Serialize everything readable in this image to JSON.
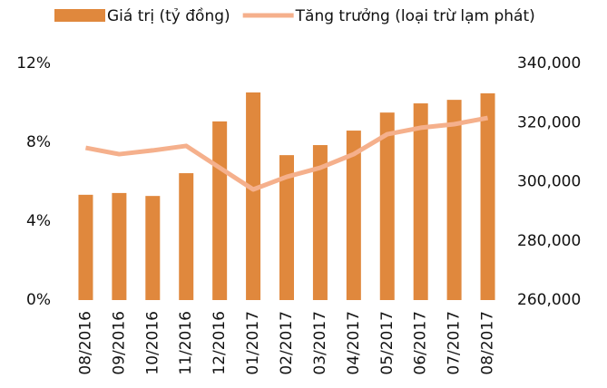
{
  "chart_data": {
    "type": "bar_line",
    "categories": [
      "08/2016",
      "09/2016",
      "10/2016",
      "11/2016",
      "12/2016",
      "01/2017",
      "02/2017",
      "03/2017",
      "04/2017",
      "05/2017",
      "06/2017",
      "07/2017",
      "08/2017"
    ],
    "series": [
      {
        "name": "Giá trị (tỷ đồng)",
        "type": "bar",
        "color": "#e0883d",
        "axis": "y2",
        "values": [
          295600,
          296200,
          295200,
          302900,
          320400,
          330200,
          309000,
          312400,
          317300,
          323400,
          326500,
          327700,
          329900
        ]
      },
      {
        "name": "Tăng trưởng (loại trừ lạm phát)",
        "type": "line",
        "color": "#f5b08c",
        "axis": "y",
        "values": [
          7.72,
          7.4,
          7.59,
          7.82,
          6.71,
          5.61,
          6.25,
          6.71,
          7.4,
          8.41,
          8.74,
          8.92,
          9.24
        ]
      }
    ],
    "ylim": [
      0,
      12
    ],
    "yticks": [
      {
        "value": 0,
        "label": "0%"
      },
      {
        "value": 4,
        "label": "4%"
      },
      {
        "value": 8,
        "label": "8%"
      },
      {
        "value": 12,
        "label": "12%"
      }
    ],
    "y2lim": [
      260000,
      340000
    ],
    "y2ticks": [
      {
        "value": 260000,
        "label": "260,000"
      },
      {
        "value": 280000,
        "label": "280,000"
      },
      {
        "value": 300000,
        "label": "300,000"
      },
      {
        "value": 320000,
        "label": "320,000"
      },
      {
        "value": 340000,
        "label": "340,000"
      }
    ],
    "legend": "top"
  }
}
